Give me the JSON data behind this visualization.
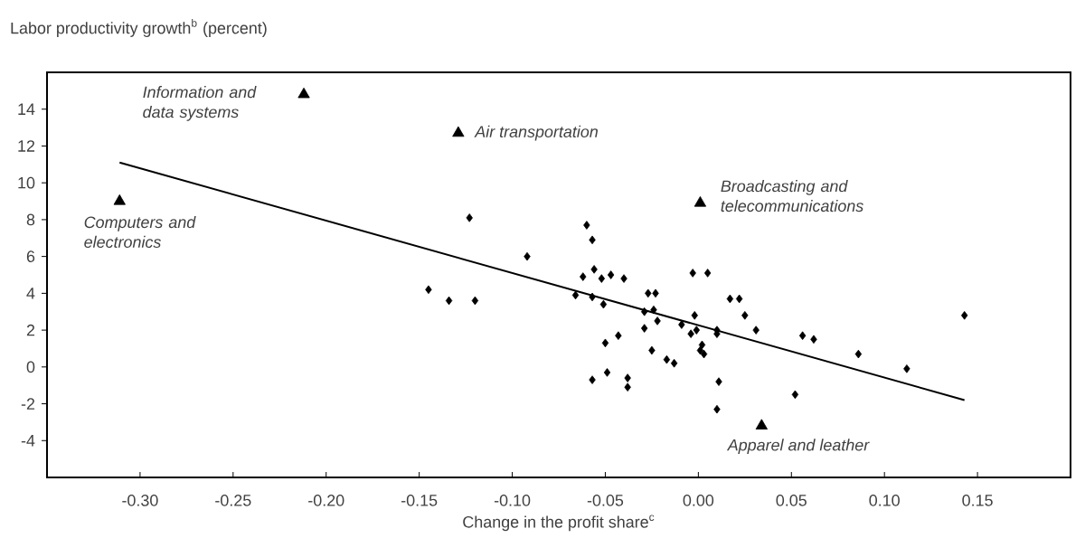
{
  "chart_data": {
    "type": "scatter",
    "ylabel": "Labor productivity growth$^{b}$ (percent)",
    "xlabel": "Change in the profit share$^{c}$",
    "xlim": [
      -0.35,
      0.2
    ],
    "ylim": [
      -6,
      16
    ],
    "xticks": [
      {
        "value": -0.3,
        "label": "-0.30"
      },
      {
        "value": -0.25,
        "label": "-0.25"
      },
      {
        "value": -0.2,
        "label": "-0.20"
      },
      {
        "value": -0.15,
        "label": "-0.15"
      },
      {
        "value": -0.1,
        "label": "-0.10"
      },
      {
        "value": -0.05,
        "label": "-0.05"
      },
      {
        "value": 0,
        "label": "0.00"
      },
      {
        "value": 0.05,
        "label": "0.05"
      },
      {
        "value": 0.1,
        "label": "0.10"
      },
      {
        "value": 0.15,
        "label": "0.15"
      }
    ],
    "yticks": [
      -4,
      -2,
      0,
      2,
      4,
      6,
      8,
      10,
      12,
      14
    ],
    "grid": false,
    "series": [
      {
        "marker": "diamond",
        "color": "#000000",
        "x": [
          -0.123,
          -0.092,
          -0.145,
          -0.134,
          -0.12,
          -0.06,
          -0.057,
          -0.056,
          -0.062,
          -0.052,
          -0.047,
          -0.04,
          -0.066,
          -0.057,
          -0.051,
          -0.027,
          -0.023,
          -0.029,
          -0.024,
          -0.022,
          -0.029,
          -0.05,
          -0.043,
          -0.025,
          -0.017,
          -0.013,
          -0.057,
          -0.049,
          -0.038,
          -0.038,
          -0.003,
          0.005,
          -0.002,
          -0.009,
          -0.004,
          -0.001,
          0.002,
          0.001,
          0.003,
          0.01,
          0.011,
          0.01,
          0.017,
          0.022,
          0.025,
          0.01,
          0.031,
          0.052,
          0.056,
          0.062,
          0.086,
          0.112,
          0.143
        ],
        "values": [
          8.1,
          6.0,
          4.2,
          3.6,
          3.6,
          7.7,
          6.9,
          5.3,
          4.9,
          4.8,
          5.0,
          4.8,
          3.9,
          3.8,
          3.4,
          4.0,
          4.0,
          3.0,
          3.1,
          2.5,
          2.1,
          1.3,
          1.7,
          0.9,
          0.4,
          0.2,
          -0.7,
          -0.3,
          -0.6,
          -1.1,
          5.1,
          5.1,
          2.8,
          2.3,
          1.8,
          2.0,
          1.2,
          0.9,
          0.7,
          1.8,
          -0.8,
          -2.3,
          3.7,
          3.7,
          2.8,
          2.0,
          2.0,
          -1.5,
          1.7,
          1.5,
          0.7,
          -0.1,
          2.8
        ]
      },
      {
        "marker": "triangle",
        "color": "#000000",
        "x": [
          -0.212,
          -0.129,
          -0.311,
          0.001,
          0.034
        ],
        "values": [
          14.8,
          12.7,
          9.0,
          8.9,
          -3.2
        ]
      },
      {
        "type": "line",
        "marker": "none",
        "line_style": "solid",
        "color": "#000000",
        "x": [
          -0.311,
          0.143
        ],
        "values": [
          11.1,
          -1.8
        ]
      }
    ],
    "annotations": [
      {
        "text": "Information and data systems",
        "x": -0.212,
        "y": 14.8
      },
      {
        "text": "Air transportation",
        "x": -0.129,
        "y": 12.7
      },
      {
        "text": "Computers and electronics",
        "x": -0.311,
        "y": 9.0
      },
      {
        "text": "Broadcasting and telecommunications",
        "x": 0.001,
        "y": 8.9
      },
      {
        "text": "Apparel and leather",
        "x": 0.034,
        "y": -3.2
      }
    ]
  }
}
